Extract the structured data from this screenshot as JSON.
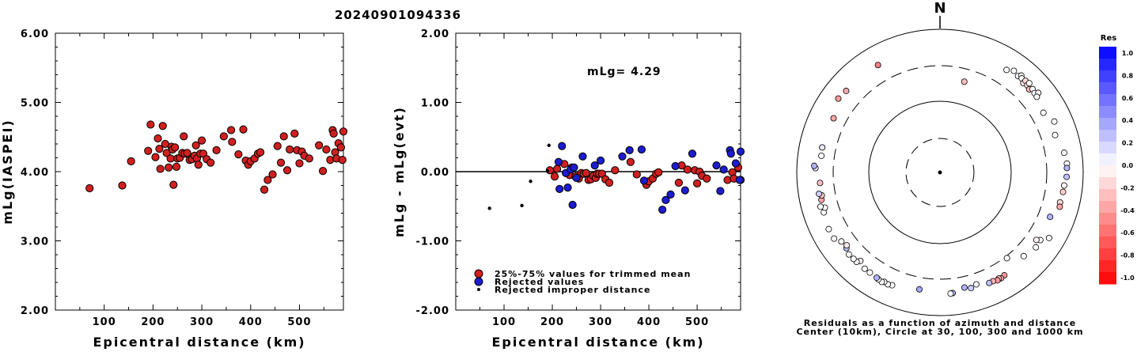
{
  "header": {
    "event_id": "20240901094336"
  },
  "chart_data": [
    {
      "type": "scatter",
      "xlabel": "Epicentral distance (km)",
      "ylabel": "mLg(IASPEI)",
      "xlim": [
        0,
        590
      ],
      "ylim": [
        2.0,
        6.0
      ],
      "x_ticks": [
        "100",
        "200",
        "300",
        "400",
        "500"
      ],
      "y_ticks": [
        "2.00",
        "3.00",
        "4.00",
        "5.00",
        "6.00"
      ],
      "grid": false,
      "series": [
        {
          "color": "#d11f1f",
          "points": [
            [
              70,
              3.76
            ],
            [
              137,
              3.8
            ],
            [
              155,
              4.15
            ],
            [
              190,
              4.3
            ],
            [
              195,
              4.68
            ],
            [
              205,
              4.21
            ],
            [
              210,
              4.48
            ],
            [
              213,
              4.33
            ],
            [
              215,
              4.04
            ],
            [
              220,
              4.66
            ],
            [
              225,
              4.4
            ],
            [
              228,
              4.27
            ],
            [
              232,
              4.06
            ],
            [
              236,
              4.19
            ],
            [
              238,
              4.36
            ],
            [
              240,
              4.32
            ],
            [
              242,
              3.81
            ],
            [
              245,
              4.35
            ],
            [
              248,
              4.07
            ],
            [
              250,
              4.19
            ],
            [
              255,
              4.2
            ],
            [
              260,
              4.27
            ],
            [
              263,
              4.51
            ],
            [
              265,
              4.26
            ],
            [
              270,
              4.27
            ],
            [
              275,
              4.17
            ],
            [
              280,
              4.18
            ],
            [
              285,
              4.23
            ],
            [
              288,
              4.38
            ],
            [
              290,
              4.19
            ],
            [
              293,
              4.1
            ],
            [
              297,
              4.26
            ],
            [
              300,
              4.45
            ],
            [
              303,
              4.26
            ],
            [
              310,
              4.18
            ],
            [
              318,
              4.13
            ],
            [
              330,
              4.31
            ],
            [
              345,
              4.51
            ],
            [
              360,
              4.6
            ],
            [
              362,
              4.43
            ],
            [
              375,
              4.25
            ],
            [
              385,
              4.61
            ],
            [
              390,
              4.16
            ],
            [
              395,
              4.1
            ],
            [
              400,
              4.15
            ],
            [
              408,
              4.19
            ],
            [
              415,
              4.26
            ],
            [
              420,
              4.28
            ],
            [
              428,
              3.74
            ],
            [
              435,
              3.88
            ],
            [
              445,
              3.96
            ],
            [
              455,
              4.37
            ],
            [
              462,
              4.13
            ],
            [
              468,
              4.51
            ],
            [
              475,
              4.02
            ],
            [
              480,
              4.32
            ],
            [
              490,
              4.55
            ],
            [
              495,
              4.31
            ],
            [
              500,
              4.12
            ],
            [
              505,
              4.29
            ],
            [
              510,
              4.23
            ],
            [
              520,
              4.19
            ],
            [
              540,
              4.38
            ],
            [
              548,
              4.01
            ],
            [
              555,
              4.32
            ],
            [
              563,
              4.17
            ],
            [
              568,
              4.6
            ],
            [
              570,
              4.55
            ],
            [
              573,
              4.28
            ],
            [
              576,
              4.19
            ],
            [
              580,
              4.41
            ],
            [
              585,
              4.35
            ],
            [
              588,
              4.17
            ],
            [
              590,
              4.58
            ]
          ]
        }
      ]
    },
    {
      "type": "scatter",
      "xlabel": "Epicentral distance (km)",
      "ylabel": "mLg - mLg(evt)",
      "xlim": [
        0,
        590
      ],
      "ylim": [
        -2.0,
        2.0
      ],
      "x_ticks": [
        "100",
        "200",
        "300",
        "400",
        "500"
      ],
      "y_ticks": [
        "-2.00",
        "-1.00",
        "0.00",
        "1.00",
        "2.00"
      ],
      "annotation": "mLg= 4.29",
      "reference_line": 0.0,
      "grid": false,
      "legend_position": "bottom-left",
      "series": [
        {
          "name": "25%-75% values for trimmed mean",
          "color": "#d11f1f",
          "marker": "circle-large",
          "points": [
            [
              195,
              0.02
            ],
            [
              205,
              -0.07
            ],
            [
              210,
              0.04
            ],
            [
              225,
              0.11
            ],
            [
              236,
              -0.05
            ],
            [
              240,
              0.06
            ],
            [
              248,
              -0.07
            ],
            [
              255,
              -0.1
            ],
            [
              260,
              -0.02
            ],
            [
              265,
              -0.03
            ],
            [
              270,
              -0.02
            ],
            [
              275,
              -0.12
            ],
            [
              280,
              -0.11
            ],
            [
              285,
              -0.06
            ],
            [
              290,
              -0.09
            ],
            [
              293,
              -0.03
            ],
            [
              297,
              -0.03
            ],
            [
              303,
              -0.03
            ],
            [
              310,
              -0.11
            ],
            [
              318,
              -0.16
            ],
            [
              330,
              0.02
            ],
            [
              362,
              0.14
            ],
            [
              375,
              -0.04
            ],
            [
              395,
              -0.19
            ],
            [
              400,
              -0.14
            ],
            [
              408,
              -0.1
            ],
            [
              415,
              -0.03
            ],
            [
              420,
              -0.01
            ],
            [
              462,
              -0.16
            ],
            [
              468,
              0.09
            ],
            [
              480,
              0.03
            ],
            [
              495,
              0.02
            ],
            [
              500,
              -0.17
            ],
            [
              505,
              0.0
            ],
            [
              510,
              -0.06
            ],
            [
              520,
              -0.1
            ],
            [
              563,
              -0.12
            ],
            [
              573,
              -0.01
            ],
            [
              576,
              -0.1
            ],
            [
              585,
              0.06
            ],
            [
              590,
              -0.12
            ]
          ]
        },
        {
          "name": "Rejected values",
          "color": "#1c1cd0",
          "marker": "circle-large",
          "points": [
            [
              213,
              0.14
            ],
            [
              215,
              -0.25
            ],
            [
              220,
              0.37
            ],
            [
              228,
              -0.02
            ],
            [
              232,
              -0.23
            ],
            [
              238,
              0.03
            ],
            [
              242,
              -0.48
            ],
            [
              245,
              0.06
            ],
            [
              250,
              -0.09
            ],
            [
              263,
              0.22
            ],
            [
              288,
              0.09
            ],
            [
              300,
              0.16
            ],
            [
              345,
              0.22
            ],
            [
              360,
              0.31
            ],
            [
              385,
              0.32
            ],
            [
              390,
              -0.13
            ],
            [
              428,
              -0.55
            ],
            [
              435,
              -0.41
            ],
            [
              445,
              -0.33
            ],
            [
              455,
              0.08
            ],
            [
              475,
              -0.27
            ],
            [
              490,
              0.26
            ],
            [
              540,
              0.09
            ],
            [
              548,
              -0.28
            ],
            [
              555,
              0.03
            ],
            [
              568,
              0.31
            ],
            [
              570,
              0.26
            ],
            [
              580,
              0.12
            ],
            [
              588,
              -0.12
            ],
            [
              590,
              0.29
            ]
          ]
        },
        {
          "name": "Rejected improper distance",
          "color": "#000000",
          "marker": "dot-small",
          "points": [
            [
              70,
              -0.53
            ],
            [
              137,
              -0.49
            ],
            [
              155,
              -0.14
            ],
            [
              190,
              0.01
            ],
            [
              193,
              0.38
            ]
          ]
        }
      ]
    },
    {
      "type": "polar-scatter",
      "north_label": "N",
      "caption_line1": "Residuals as a function of azimuth and distance",
      "caption_line2": "Center (10km), Circle at 30, 100, 300 and 1000 km",
      "colorbar_title": "Res",
      "colorbar_ticks": [
        "1.0",
        "0.8",
        "0.6",
        "0.4",
        "0.2",
        "0.0",
        "-0.2",
        "-0.4",
        "-0.6",
        "-0.8",
        "-1.0"
      ],
      "colorbar_range": [
        -1.0,
        1.0
      ],
      "color_positive": "#0000ff",
      "color_negative": "#ff0000",
      "stations": [
        {
          "az": 15,
          "dist": 200,
          "res": -0.25
        },
        {
          "az": 33,
          "dist": 500,
          "res": 0.0
        },
        {
          "az": 36,
          "dist": 560,
          "res": 0.0
        },
        {
          "az": 39,
          "dist": 530,
          "res": 0.03
        },
        {
          "az": 40,
          "dist": 575,
          "res": -0.02
        },
        {
          "az": 41,
          "dist": 540,
          "res": 0.0
        },
        {
          "az": 43,
          "dist": 500,
          "res": -0.1
        },
        {
          "az": 43,
          "dist": 555,
          "res": -0.15
        },
        {
          "az": 45,
          "dist": 520,
          "res": -0.12
        },
        {
          "az": 45,
          "dist": 570,
          "res": 0.0
        },
        {
          "az": 47,
          "dist": 495,
          "res": -0.3
        },
        {
          "az": 48,
          "dist": 540,
          "res": 0.0
        },
        {
          "az": 50,
          "dist": 520,
          "res": 0.0
        },
        {
          "az": 51,
          "dist": 575,
          "res": -0.05
        },
        {
          "az": 52,
          "dist": 510,
          "res": 0.0
        },
        {
          "az": 60,
          "dist": 455,
          "res": 0.0
        },
        {
          "az": 66,
          "dist": 550,
          "res": 0.0
        },
        {
          "az": 72,
          "dist": 480,
          "res": 0.0
        },
        {
          "az": 81,
          "dist": 560,
          "res": 0.0
        },
        {
          "az": 86,
          "dist": 590,
          "res": 0.0
        },
        {
          "az": 88,
          "dist": 585,
          "res": 0.3
        },
        {
          "az": 92,
          "dist": 580,
          "res": 0.25
        },
        {
          "az": 96,
          "dist": 545,
          "res": -0.05
        },
        {
          "az": 99,
          "dist": 540,
          "res": -0.2
        },
        {
          "az": 104,
          "dist": 525,
          "res": -0.15
        },
        {
          "az": 106,
          "dist": 540,
          "res": -0.35
        },
        {
          "az": 112,
          "dist": 445,
          "res": 0.3
        },
        {
          "az": 121,
          "dist": 590,
          "res": 0.0
        },
        {
          "az": 124,
          "dist": 480,
          "res": 0.0
        },
        {
          "az": 125,
          "dist": 430,
          "res": -0.05
        },
        {
          "az": 128,
          "dist": 490,
          "res": 0.0
        },
        {
          "az": 135,
          "dist": 440,
          "res": 0.0
        },
        {
          "az": 142,
          "dist": 320,
          "res": 0.0
        },
        {
          "az": 148,
          "dist": 485,
          "res": -0.4
        },
        {
          "az": 150,
          "dist": 500,
          "res": -0.35
        },
        {
          "az": 151,
          "dist": 485,
          "res": -0.3
        },
        {
          "az": 152,
          "dist": 500,
          "res": -0.4
        },
        {
          "az": 154,
          "dist": 480,
          "res": -0.3
        },
        {
          "az": 156,
          "dist": 480,
          "res": 0.25
        },
        {
          "az": 162,
          "dist": 430,
          "res": 0.0
        },
        {
          "az": 165,
          "dist": 460,
          "res": 0.2
        },
        {
          "az": 168,
          "dist": 430,
          "res": 0.3
        },
        {
          "az": 174,
          "dist": 485,
          "res": 0.3
        },
        {
          "az": 175,
          "dist": 490,
          "res": 0.0
        },
        {
          "az": 190,
          "dist": 445,
          "res": 0.35
        },
        {
          "az": 203,
          "dist": 505,
          "res": 0.0
        },
        {
          "az": 205,
          "dist": 520,
          "res": 0.0
        },
        {
          "az": 207,
          "dist": 510,
          "res": 0.0
        },
        {
          "az": 208,
          "dist": 530,
          "res": 0.0
        },
        {
          "az": 210,
          "dist": 520,
          "res": 0.0
        },
        {
          "az": 211,
          "dist": 510,
          "res": 0.3
        },
        {
          "az": 215,
          "dist": 500,
          "res": 0.0
        },
        {
          "az": 218,
          "dist": 500,
          "res": 0.0
        },
        {
          "az": 222,
          "dist": 450,
          "res": -0.05
        },
        {
          "az": 223,
          "dist": 500,
          "res": 0.0
        },
        {
          "az": 225,
          "dist": 500,
          "res": 0.0
        },
        {
          "az": 228,
          "dist": 505,
          "res": 0.0
        },
        {
          "az": 231,
          "dist": 470,
          "res": 0.25
        },
        {
          "az": 232,
          "dist": 440,
          "res": -0.1
        },
        {
          "az": 235,
          "dist": 470,
          "res": 0.0
        },
        {
          "az": 238,
          "dist": 545,
          "res": 0.0
        },
        {
          "az": 243,
          "dist": 545,
          "res": 0.0
        },
        {
          "az": 251,
          "dist": 510,
          "res": 0.0
        },
        {
          "az": 253,
          "dist": 470,
          "res": 0.0
        },
        {
          "az": 254,
          "dist": 535,
          "res": 0.0
        },
        {
          "az": 257,
          "dist": 490,
          "res": -0.35
        },
        {
          "az": 259,
          "dist": 470,
          "res": -0.25
        },
        {
          "az": 260,
          "dist": 510,
          "res": 0.2
        },
        {
          "az": 265,
          "dist": 470,
          "res": -0.25
        },
        {
          "az": 272,
          "dist": 540,
          "res": 0.1
        },
        {
          "az": 273,
          "dist": 565,
          "res": 0.3
        },
        {
          "az": 278,
          "dist": 460,
          "res": 0.0
        },
        {
          "az": 282,
          "dist": 470,
          "res": 0.1
        },
        {
          "az": 297,
          "dist": 455,
          "res": -0.35
        },
        {
          "az": 306,
          "dist": 560,
          "res": -0.4
        },
        {
          "az": 311,
          "dist": 535,
          "res": -0.35
        },
        {
          "az": 330,
          "dist": 530,
          "res": -0.5
        }
      ]
    }
  ]
}
